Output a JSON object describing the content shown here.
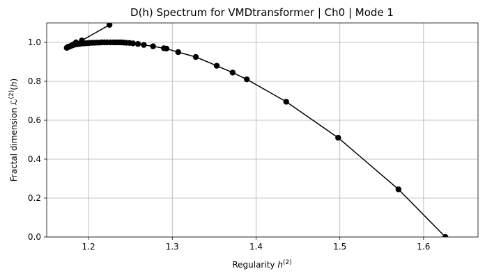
{
  "chart_data": {
    "type": "line",
    "title": "D(h) Spectrum for VMDtransformer | Ch0 | Mode 1",
    "xlabel": "Regularity h^(2)",
    "ylabel": "Fractal dimension ℒ^(2)(h)",
    "xlim": [
      1.15,
      1.665
    ],
    "ylim": [
      0.0,
      1.1
    ],
    "xticks": [
      1.2,
      1.3,
      1.4,
      1.5,
      1.6
    ],
    "yticks": [
      0.0,
      0.2,
      0.4,
      0.6,
      0.8,
      1.0
    ],
    "xtick_labels": [
      "1.2",
      "1.3",
      "1.4",
      "1.5",
      "1.6"
    ],
    "ytick_labels": [
      "0.0",
      "0.2",
      "0.4",
      "0.6",
      "0.8",
      "1.0"
    ],
    "grid": true,
    "series": [
      {
        "color": "#000000",
        "marker": "circle",
        "x": [
          1.225,
          1.192,
          1.185,
          1.182,
          1.18,
          1.178,
          1.176,
          1.175,
          1.174,
          1.174,
          1.175,
          1.177,
          1.179,
          1.181,
          1.183,
          1.186,
          1.189,
          1.192,
          1.195,
          1.198,
          1.201,
          1.204,
          1.207,
          1.21,
          1.213,
          1.216,
          1.219,
          1.222,
          1.226,
          1.23,
          1.233,
          1.236,
          1.239,
          1.242,
          1.245,
          1.249,
          1.253,
          1.259,
          1.266,
          1.277,
          1.29,
          1.293,
          1.307,
          1.328,
          1.353,
          1.372,
          1.389,
          1.436,
          1.498,
          1.57,
          1.626
        ],
        "y": [
          1.09,
          1.01,
          1.0,
          0.99,
          0.985,
          0.98,
          0.978,
          0.975,
          0.972,
          0.972,
          0.975,
          0.978,
          0.982,
          0.985,
          0.988,
          0.99,
          0.992,
          0.994,
          0.995,
          0.996,
          0.997,
          0.998,
          0.998,
          0.999,
          0.999,
          1.0,
          1.0,
          1.0,
          1.0,
          1.0,
          1.0,
          1.0,
          1.0,
          0.999,
          0.998,
          0.997,
          0.995,
          0.992,
          0.987,
          0.98,
          0.97,
          0.968,
          0.95,
          0.925,
          0.88,
          0.845,
          0.81,
          0.695,
          0.51,
          0.245,
          0.0
        ]
      }
    ]
  }
}
